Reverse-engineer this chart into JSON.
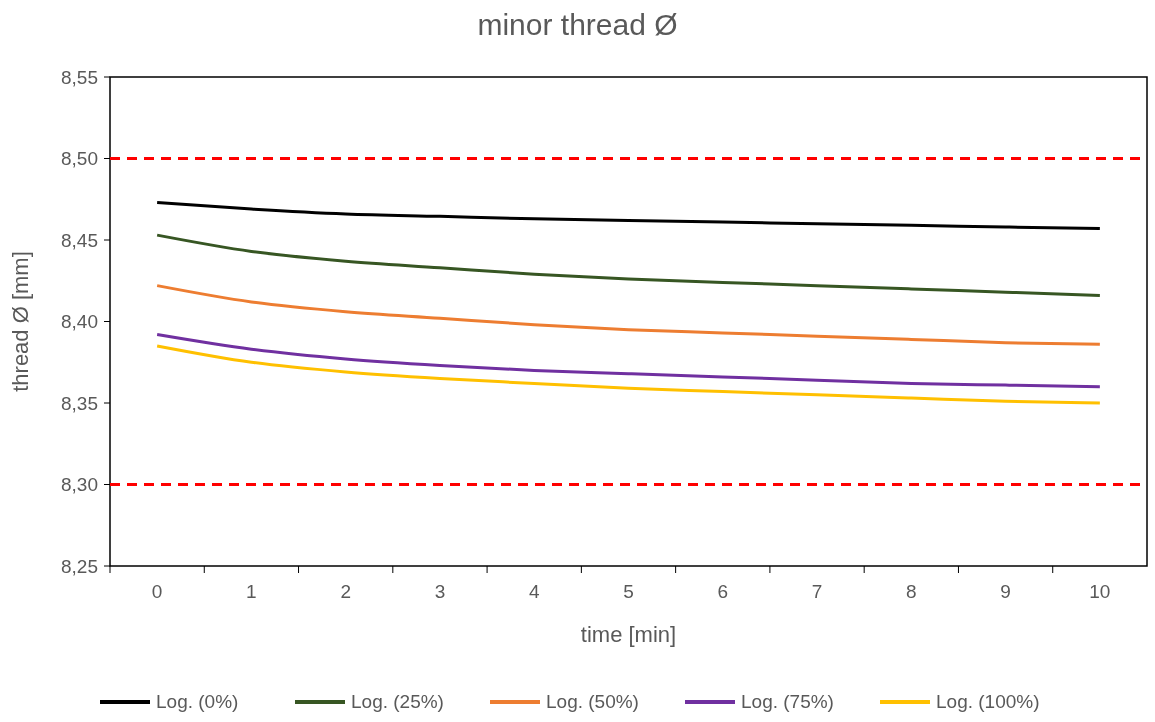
{
  "chart_data": {
    "type": "line",
    "title": "minor thread Ø",
    "xlabel": "time [min]",
    "ylabel": "thread Ø [mm]",
    "categories": [
      "0",
      "1",
      "2",
      "3",
      "4",
      "5",
      "6",
      "7",
      "8",
      "9",
      "10"
    ],
    "ylim": [
      8.25,
      8.55
    ],
    "yticks": [
      {
        "value": 8.25,
        "label": "8,25"
      },
      {
        "value": 8.3,
        "label": "8,30"
      },
      {
        "value": 8.35,
        "label": "8,35"
      },
      {
        "value": 8.4,
        "label": "8,40"
      },
      {
        "value": 8.45,
        "label": "8,45"
      },
      {
        "value": 8.5,
        "label": "8,50"
      },
      {
        "value": 8.55,
        "label": "8,55"
      }
    ],
    "series": [
      {
        "name": "Log. (0%)",
        "color": "#000000",
        "values": [
          8.473,
          8.469,
          8.466,
          8.4645,
          8.463,
          8.462,
          8.461,
          8.46,
          8.459,
          8.458,
          8.457
        ]
      },
      {
        "name": "Log. (25%)",
        "color": "#375623",
        "values": [
          8.453,
          8.443,
          8.437,
          8.433,
          8.429,
          8.426,
          8.424,
          8.422,
          8.42,
          8.418,
          8.416
        ]
      },
      {
        "name": "Log. (50%)",
        "color": "#ed7d31",
        "values": [
          8.422,
          8.412,
          8.406,
          8.402,
          8.398,
          8.395,
          8.393,
          8.391,
          8.389,
          8.387,
          8.386
        ]
      },
      {
        "name": "Log. (75%)",
        "color": "#7030a0",
        "values": [
          8.392,
          8.383,
          8.377,
          8.373,
          8.37,
          8.368,
          8.366,
          8.364,
          8.362,
          8.361,
          8.36
        ]
      },
      {
        "name": "Log. (100%)",
        "color": "#ffc000",
        "values": [
          8.385,
          8.375,
          8.369,
          8.365,
          8.362,
          8.359,
          8.357,
          8.355,
          8.353,
          8.351,
          8.35
        ]
      }
    ],
    "ref_lines": [
      {
        "axis": "y",
        "value": 8.5,
        "color": "#ff0000",
        "line_style": "dashed"
      },
      {
        "axis": "y",
        "value": 8.3,
        "color": "#ff0000",
        "line_style": "dashed"
      }
    ],
    "legend": "bottom",
    "grid": false,
    "marker": "none",
    "line_style": "solid"
  }
}
